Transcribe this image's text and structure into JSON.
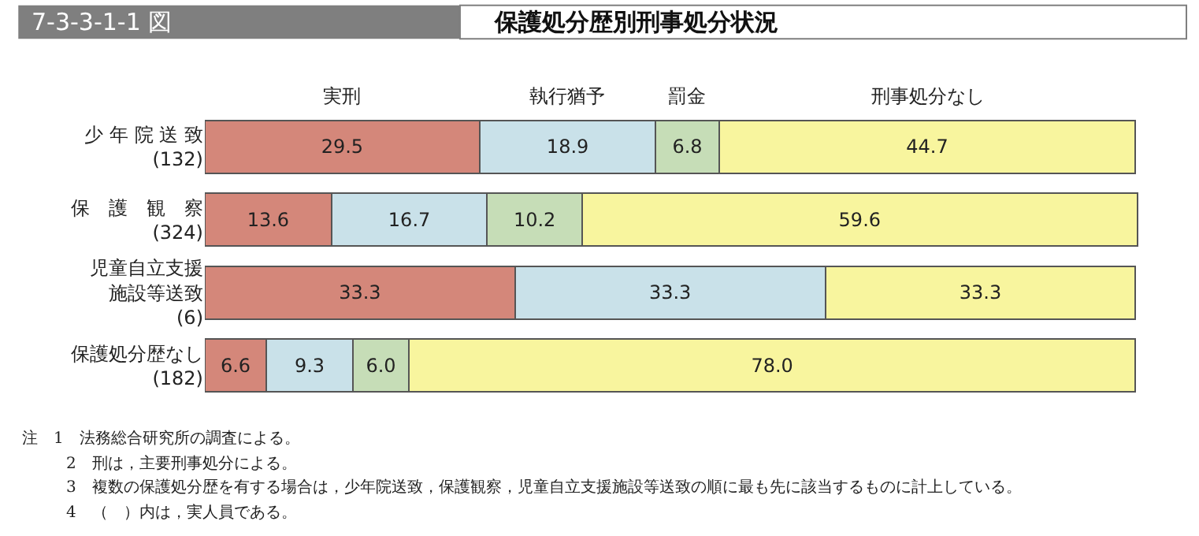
{
  "chart_data": {
    "type": "bar",
    "orientation": "horizontal",
    "stacked": true,
    "title": "保護処分歴別刑事処分状況",
    "subtitle": "7-3-3-1-1 図",
    "categories": [
      "少 年 院 送 致(132)",
      "保　護　観　察(324)",
      "児童自立支援施設等送致(6)",
      "保護処分歴なし(182)"
    ],
    "series": [
      {
        "name": "実刑",
        "color": "#d4877a",
        "values": [
          29.5,
          13.6,
          33.3,
          6.6
        ],
        "value_labels": [
          "29.5",
          "13.6",
          "33.3",
          "6.6"
        ]
      },
      {
        "name": "執行猶予",
        "color": "#c9e1e9",
        "values": [
          18.9,
          16.7,
          33.3,
          9.3
        ],
        "value_labels": [
          "18.9",
          "16.7",
          "33.3",
          "9.3"
        ]
      },
      {
        "name": "罰金",
        "color": "#c6ddb7",
        "values": [
          6.8,
          10.2,
          null,
          6.0
        ],
        "value_labels": [
          "6.8",
          "10.2",
          null,
          "6.0"
        ]
      },
      {
        "name": "刑事処分なし",
        "color": "#f8f59e",
        "values": [
          44.7,
          59.6,
          33.3,
          78.0
        ],
        "value_labels": [
          "44.7",
          "59.6",
          "33.3",
          "78.0"
        ]
      }
    ],
    "legend": "top",
    "annotations": [
      "注　1　法務総合研究所の調査による。",
      "2　刑は，主要刑事処分による。",
      "3　複数の保護処分歴を有する場合は，少年院送致，保護観察，児童自立支援施設等送致の順に最も先に該当するものに計上している。",
      "4　（　）内は，実人員である。"
    ]
  }
}
